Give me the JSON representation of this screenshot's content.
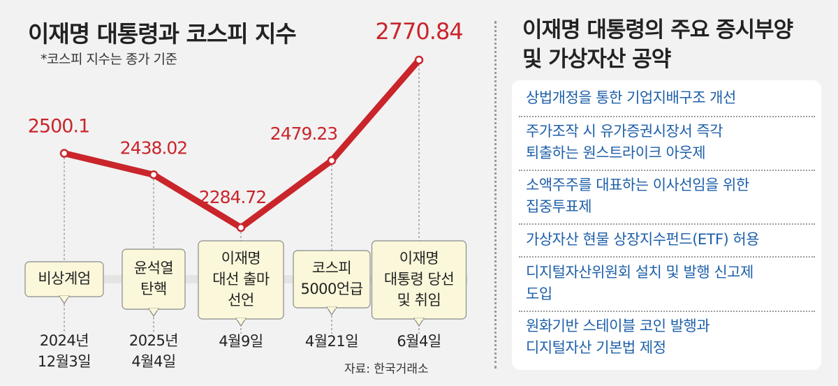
{
  "title": "이재명 대통령과 코스피 지수",
  "subtitle": "*코스피 지수는 종가 기준",
  "source": "자료: 한국거래소",
  "colors": {
    "line": "#c9252b",
    "value_text": "#c9252b",
    "event_box": "#fbf7da",
    "pledge_text": "#1d5fa8"
  },
  "chart_data": {
    "type": "line",
    "title": "이재명 대통령과 코스피 지수",
    "subtitle": "*코스피 지수는 종가 기준",
    "categories": [
      "2024년\n12월3일",
      "2025년\n4월4일",
      "4월9일",
      "4월21일",
      "6월4일"
    ],
    "values": [
      2500.1,
      2438.02,
      2284.72,
      2479.23,
      2770.84
    ],
    "value_labels": [
      "2500.1",
      "2438.02",
      "2284.72",
      "2479.23",
      "2770.84"
    ],
    "events": [
      "비상계엄",
      "윤석열\n탄핵",
      "이재명\n대선 출마\n선언",
      "코스피\n5000언급",
      "이재명\n대통령 당선\n및 취임"
    ],
    "grid": false
  },
  "right_panel": {
    "title": "이재명 대통령의 주요 증시부양\n및 가상자산 공약",
    "pledges": [
      "상법개정을 통한 기업지배구조 개선",
      "주가조작 시 유가증권시장서 즉각\n퇴출하는 원스트라이크 아웃제",
      "소액주주를 대표하는 이사선임을 위한\n집중투표제",
      "가상자산 현물 상장지수펀드(ETF) 허용",
      "디지털자산위원회 설치 및 발행 신고제\n도입",
      "원화기반 스테이블 코인 발행과\n디지털자산 기본법 제정"
    ]
  }
}
